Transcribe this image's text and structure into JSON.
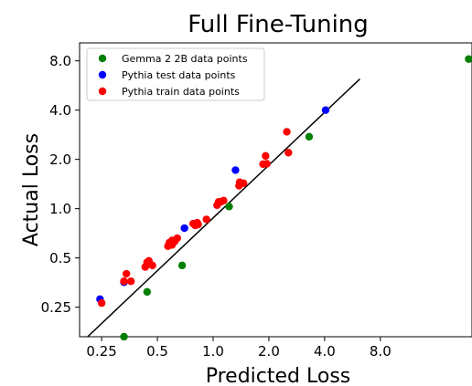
{
  "chart_data": {
    "type": "scatter",
    "title": "Full Fine-Tuning",
    "xlabel": "Predicted Loss",
    "ylabel": "Actual Loss",
    "x_scale": "log2",
    "y_scale": "log2",
    "xlim": [
      0.19,
      25
    ],
    "ylim": [
      0.165,
      10.3
    ],
    "x_ticks": [
      0.25,
      0.5,
      1.0,
      2.0,
      4.0,
      8.0
    ],
    "x_tick_labels": [
      "0.25",
      "0.5",
      "1.0",
      "2.0",
      "4.0",
      "8.0"
    ],
    "y_ticks": [
      0.25,
      0.5,
      1.0,
      2.0,
      4.0,
      8.0
    ],
    "y_tick_labels": [
      "0.25",
      "0.5",
      "1.0",
      "2.0",
      "4.0",
      "8.0"
    ],
    "legend_position": "top-left",
    "fit_line": {
      "x": [
        0.21,
        6.2
      ],
      "y": [
        0.165,
        6.2
      ],
      "color": "#000000"
    },
    "series": [
      {
        "name": "Gemma 2 2B data points",
        "color": "#008000",
        "points": [
          [
            0.33,
            0.165
          ],
          [
            0.44,
            0.31
          ],
          [
            0.68,
            0.45
          ],
          [
            1.22,
            1.03
          ],
          [
            3.3,
            2.75
          ],
          [
            24.0,
            8.2
          ]
        ]
      },
      {
        "name": "Pythia test data points",
        "color": "#0000ff",
        "points": [
          [
            0.245,
            0.28
          ],
          [
            0.33,
            0.355
          ],
          [
            0.7,
            0.76
          ],
          [
            1.32,
            1.72
          ],
          [
            4.05,
            4.0
          ]
        ]
      },
      {
        "name": "Pythia train data points",
        "color": "#ff0000",
        "points": [
          [
            0.25,
            0.265
          ],
          [
            0.33,
            0.36
          ],
          [
            0.34,
            0.4
          ],
          [
            0.36,
            0.36
          ],
          [
            0.43,
            0.44
          ],
          [
            0.44,
            0.47
          ],
          [
            0.45,
            0.48
          ],
          [
            0.47,
            0.45
          ],
          [
            0.57,
            0.59
          ],
          [
            0.58,
            0.62
          ],
          [
            0.6,
            0.6
          ],
          [
            0.6,
            0.64
          ],
          [
            0.62,
            0.63
          ],
          [
            0.64,
            0.66
          ],
          [
            0.78,
            0.81
          ],
          [
            0.8,
            0.79
          ],
          [
            0.82,
            0.82
          ],
          [
            0.83,
            0.8
          ],
          [
            0.92,
            0.86
          ],
          [
            1.05,
            1.05
          ],
          [
            1.07,
            1.1
          ],
          [
            1.1,
            1.1
          ],
          [
            1.14,
            1.12
          ],
          [
            1.38,
            1.38
          ],
          [
            1.39,
            1.45
          ],
          [
            1.46,
            1.43
          ],
          [
            1.86,
            1.87
          ],
          [
            1.92,
            2.1
          ],
          [
            1.95,
            1.88
          ],
          [
            2.5,
            2.95
          ],
          [
            2.55,
            2.2
          ]
        ]
      }
    ]
  }
}
